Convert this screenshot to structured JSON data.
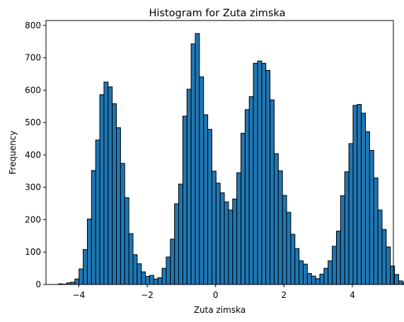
{
  "chart_data": {
    "type": "bar",
    "title": "Histogram for Zuta zimska",
    "xlabel": "Zuta zimska",
    "ylabel": "Frequency",
    "xlim": [
      -4.96,
      5.2
    ],
    "ylim": [
      0,
      815
    ],
    "xticks": [
      -4,
      -2,
      0,
      2,
      4
    ],
    "xtick_labels": [
      "−4",
      "−2",
      "0",
      "2",
      "4"
    ],
    "yticks": [
      0,
      100,
      200,
      300,
      400,
      500,
      600,
      700,
      800
    ],
    "ytick_labels": [
      "0",
      "100",
      "200",
      "300",
      "400",
      "500",
      "600",
      "700",
      "800"
    ],
    "grid": false,
    "legend": "none",
    "colors": {
      "bar_fill": "#1f77b4",
      "bar_edge": "#000000"
    },
    "bins": {
      "start": -4.6,
      "width": 0.1214,
      "counts": [
        2,
        1,
        5,
        7,
        17,
        48,
        108,
        202,
        352,
        446,
        586,
        625,
        610,
        558,
        484,
        374,
        268,
        157,
        92,
        64,
        39,
        25,
        28,
        17,
        21,
        50,
        85,
        140,
        249,
        310,
        520,
        603,
        743,
        775,
        641,
        524,
        479,
        350,
        313,
        283,
        255,
        230,
        264,
        345,
        467,
        540,
        580,
        683,
        690,
        683,
        661,
        570,
        404,
        351,
        275,
        223,
        155,
        111,
        73,
        63,
        34,
        26,
        18,
        32,
        50,
        73,
        118,
        165,
        274,
        348,
        435,
        553,
        556,
        529,
        472,
        414,
        329,
        230,
        170,
        116,
        57,
        31,
        11,
        5
      ]
    }
  }
}
